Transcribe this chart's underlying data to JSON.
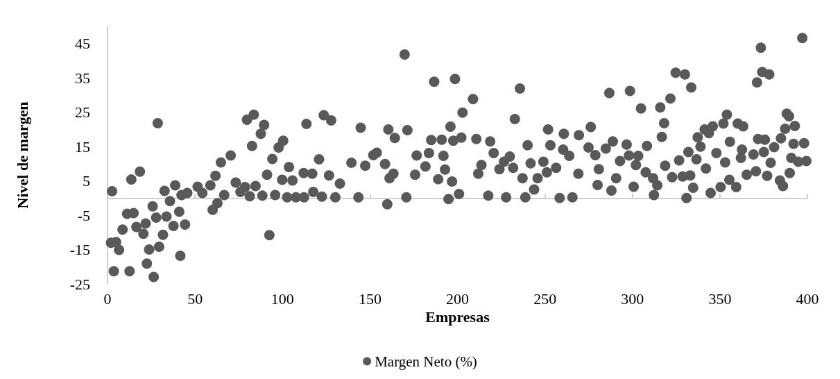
{
  "chart_data": {
    "type": "scatter",
    "xlabel": "Empresas",
    "ylabel": "Nivel de margen",
    "xlim": [
      0,
      400
    ],
    "xticks": [
      0,
      50,
      100,
      150,
      200,
      250,
      300,
      350,
      400
    ],
    "ylim": [
      -25,
      50
    ],
    "yticks": [
      -25,
      -15,
      -5,
      5,
      15,
      25,
      35,
      45
    ],
    "grid": false,
    "legend": "bottom",
    "marker": "circle",
    "series": [
      {
        "name": "Margen Neto (%)",
        "color": "#595959",
        "x": [
          2.6,
          2.0,
          4.9,
          6.6,
          3.6,
          8.6,
          11.2,
          13.6,
          12.6,
          14.9,
          18.5,
          16.5,
          20.5,
          21.8,
          23.8,
          22.5,
          25.8,
          26.4,
          28.7,
          27.8,
          29.5,
          31.7,
          32.6,
          33.7,
          35.7,
          37.7,
          38.7,
          41.0,
          41.6,
          44.3,
          42.3,
          45.6,
          51.5,
          54.2,
          58.8,
          60.1,
          61.7,
          64.8,
          62.8,
          66.7,
          70.4,
          73.3,
          76.0,
          78.6,
          79.7,
          83.6,
          82.6,
          81.3,
          84.6,
          87.6,
          89.5,
          88.5,
          91.2,
          92.5,
          94.2,
          97.8,
          100.4,
          95.8,
          99.8,
          102.7,
          103.7,
          105.7,
          107.7,
          112.3,
          112.1,
          113.7,
          117.0,
          120.9,
          117.6,
          122.5,
          123.6,
          127.8,
          126.6,
          130.2,
          132.8,
          144.7,
          139.4,
          147.3,
          143.4,
          151.9,
          153.9,
          158.6,
          159.9,
          160.5,
          164.2,
          161.2,
          163.4,
          169.8,
          171.4,
          170.8,
          176.7,
          175.8,
          181.7,
          183.7,
          185.0,
          186.7,
          191.0,
          192.0,
          192.9,
          189.0,
          194.9,
          196.0,
          196.9,
          197.6,
          198.6,
          200.9,
          202.2,
          202.9,
          208.9,
          210.8,
          211.9,
          213.7,
          217.6,
          218.7,
          220.7,
          224.0,
          226.6,
          229.9,
          227.8,
          232.8,
          235.7,
          231.8,
          237.2,
          238.8,
          240.1,
          241.8,
          243.8,
          245.8,
          249.1,
          251.1,
          251.8,
          253.1,
          256.4,
          258.4,
          260.8,
          260.4,
          263.9,
          265.7,
          269.4,
          269.1,
          276.2,
          274.9,
          278.8,
          280.8,
          280.1,
          286.8,
          284.8,
          288.8,
          288.0,
          290.7,
          292.9,
          296.7,
          298.6,
          298.0,
          300.7,
          303.3,
          302.0,
          304.9,
          308.3,
          307.6,
          311.8,
          314.2,
          312.3,
          315.9,
          316.8,
          318.1,
          321.7,
          318.7,
          322.7,
          324.7,
          330.0,
          326.7,
          328.7,
          330.9,
          333.6,
          333.0,
          334.7,
          332.0,
          336.6,
          337.3,
          338.9,
          341.3,
          343.7,
          345.9,
          342.0,
          344.7,
          348.0,
          350.4,
          352.0,
          354.0,
          353.0,
          355.7,
          355.4,
          359.3,
          360.2,
          363.3,
          362.6,
          362.0,
          365.3,
          369.2,
          370.6,
          371.2,
          373.4,
          374.2,
          378.2,
          371.8,
          375.7,
          375.1,
          379.0,
          377.0,
          381.0,
          384.3,
          386.0,
          384.9,
          387.3,
          388.2,
          389.5,
          389.9,
          390.8,
          392.8,
          392.1,
          394.8,
          397.1,
          398.1,
          399.4
        ],
        "values": [
          2.0,
          -13.0,
          -12.8,
          -15.1,
          -21.3,
          -9.2,
          -4.6,
          5.4,
          -21.3,
          -4.4,
          7.7,
          -8.4,
          -10.4,
          -7.4,
          -15.0,
          -19.1,
          -2.4,
          -23.0,
          21.8,
          -5.7,
          -14.2,
          -10.7,
          2.1,
          -5.4,
          -0.9,
          -8.1,
          3.7,
          -4.0,
          -16.8,
          -7.7,
          0.9,
          1.5,
          3.3,
          1.5,
          3.7,
          -3.4,
          6.5,
          10.4,
          -1.5,
          0.9,
          12.4,
          4.5,
          1.8,
          3.2,
          22.8,
          24.3,
          15.2,
          0.5,
          3.5,
          18.7,
          21.3,
          0.7,
          6.8,
          -10.8,
          11.4,
          14.7,
          16.7,
          0.9,
          5.3,
          0.2,
          9.0,
          5.1,
          0.2,
          0.2,
          7.3,
          21.6,
          7.1,
          11.3,
          1.8,
          0.4,
          24.1,
          22.6,
          6.6,
          0.2,
          4.2,
          20.5,
          10.3,
          9.4,
          0.2,
          12.5,
          13.2,
          9.9,
          -1.8,
          20.0,
          17.5,
          5.8,
          7.1,
          41.8,
          19.8,
          0.2,
          12.4,
          6.8,
          9.2,
          13.1,
          16.9,
          33.9,
          17.0,
          12.3,
          8.3,
          5.5,
          -0.3,
          20.8,
          4.8,
          16.7,
          34.7,
          1.2,
          17.6,
          24.9,
          28.8,
          17.2,
          7.1,
          9.6,
          0.7,
          16.5,
          13.1,
          8.4,
          10.6,
          12.1,
          0.2,
          23.0,
          31.9,
          8.8,
          5.8,
          0.2,
          15.4,
          10.1,
          2.5,
          5.8,
          10.6,
          7.5,
          20.0,
          15.4,
          8.8,
          0.0,
          18.7,
          14.1,
          12.3,
          0.2,
          18.3,
          7.1,
          20.7,
          14.7,
          12.5,
          8.4,
          3.8,
          30.6,
          14.4,
          16.5,
          2.2,
          5.8,
          10.8,
          15.6,
          31.2,
          12.4,
          3.3,
          12.3,
          9.6,
          26.1,
          15.2,
          7.5,
          5.8,
          3.7,
          0.9,
          26.4,
          17.8,
          21.8,
          29.0,
          9.4,
          6.1,
          36.5,
          36.0,
          11.0,
          6.3,
          0.0,
          32.2,
          6.6,
          3.0,
          13.4,
          11.3,
          17.7,
          15.0,
          20.0,
          18.9,
          20.9,
          8.6,
          1.5,
          13.1,
          3.2,
          21.7,
          24.3,
          10.4,
          16.4,
          5.3,
          3.2,
          21.7,
          20.9,
          14.1,
          11.7,
          6.8,
          12.7,
          7.8,
          33.7,
          43.8,
          36.7,
          36.0,
          17.2,
          17.0,
          13.4,
          10.3,
          6.5,
          14.8,
          5.1,
          3.5,
          17.4,
          20.2,
          24.6,
          23.8,
          7.3,
          11.7,
          21.0,
          15.8,
          10.6,
          46.6,
          16.0,
          10.8
        ]
      }
    ]
  }
}
